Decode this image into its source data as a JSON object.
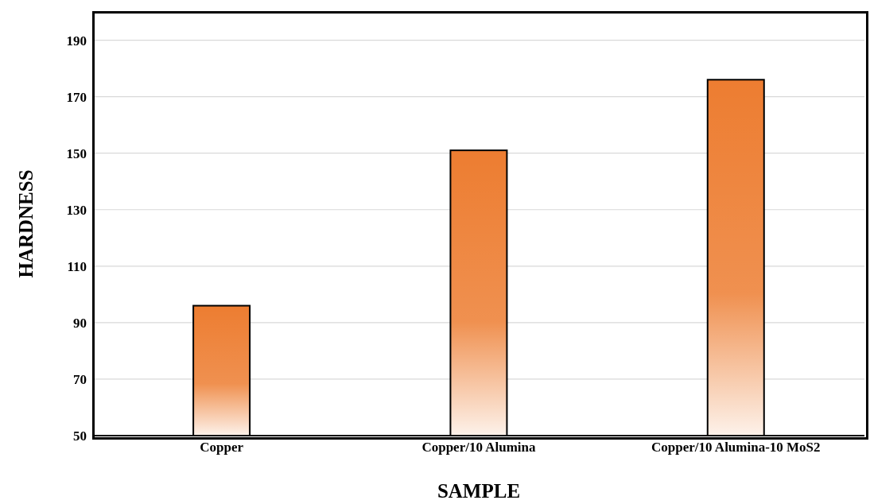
{
  "chart_data": {
    "type": "bar",
    "xlabel": "SAMPLE",
    "ylabel": "HARDNESS",
    "categories": [
      "Copper",
      "Copper/10 Alumina",
      "Copper/10 Alumina-10 MoS2"
    ],
    "values": [
      96,
      151,
      176
    ],
    "color": "#ed7d31",
    "ylim": [
      50,
      200
    ],
    "yticks": [
      50,
      70,
      90,
      110,
      130,
      150,
      170,
      190
    ],
    "grid": "y"
  }
}
